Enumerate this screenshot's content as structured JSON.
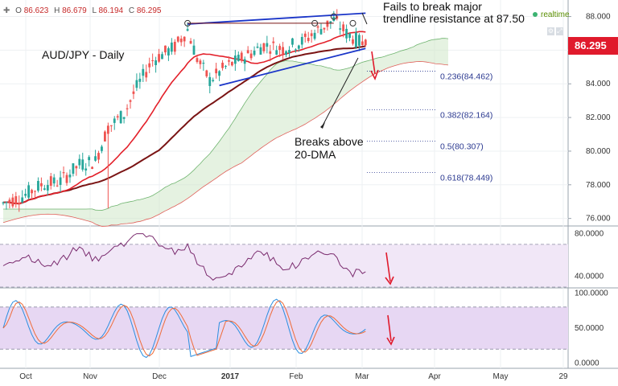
{
  "header": {
    "ohlc": [
      {
        "key": "O",
        "value": "86.623"
      },
      {
        "key": "H",
        "value": "86.679"
      },
      {
        "key": "L",
        "value": "86.194"
      },
      {
        "key": "C",
        "value": "86.295"
      }
    ],
    "realtime_label": "realtime"
  },
  "last_price": "86.295",
  "annotations": {
    "pair": "AUD/JPY - Daily",
    "resistance_line1": "Fails to break major",
    "resistance_line2": "trendline resistance at 87.50",
    "dma_line1": "Breaks above",
    "dma_line2": "20-DMA"
  },
  "colors": {
    "up": "#26a69a",
    "down": "#ef5350",
    "price_tag": "#e01a2c",
    "trendline": "#1a35c8",
    "sma20": "#e3202a",
    "sma50": "#7a1414",
    "rsi": "#7a2b6e",
    "stoch_k": "#2a8ee0",
    "stoch_d": "#ef6c3a"
  },
  "chart_data": [
    {
      "type": "candlestick",
      "title": "AUD/JPY - Daily",
      "x": [
        "Oct",
        "Nov",
        "Dec",
        "2017",
        "Feb",
        "Mar",
        "Apr",
        "May",
        "29"
      ],
      "yticks": [
        "88.000",
        "86.000",
        "84.000",
        "82.000",
        "80.000",
        "78.000",
        "76.000"
      ],
      "ylim": [
        75.6,
        88.6
      ],
      "indicators": [
        "SMA 20",
        "SMA 50",
        "Ichimoku cloud"
      ],
      "trendline_resistance": 87.5,
      "last": 86.295,
      "fibonacci": [
        {
          "ratio": "0.236",
          "value": 84.462,
          "label": "0.236(84.462)"
        },
        {
          "ratio": "0.382",
          "value": 82.164,
          "label": "0.382(82.164)"
        },
        {
          "ratio": "0.5",
          "value": 80.307,
          "label": "0.5(80.307)"
        },
        {
          "ratio": "0.618",
          "value": 78.449,
          "label": "0.618(78.449)"
        }
      ]
    },
    {
      "type": "line",
      "name": "RSI",
      "yticks": [
        "80.0000",
        "40.0000"
      ],
      "ylim": [
        30,
        85
      ],
      "bands": [
        30,
        70
      ]
    },
    {
      "type": "line",
      "name": "Stochastic",
      "yticks": [
        "100.0000",
        "50.0000",
        "0.0000"
      ],
      "ylim": [
        -5,
        105
      ],
      "bands": [
        20,
        80
      ]
    }
  ]
}
